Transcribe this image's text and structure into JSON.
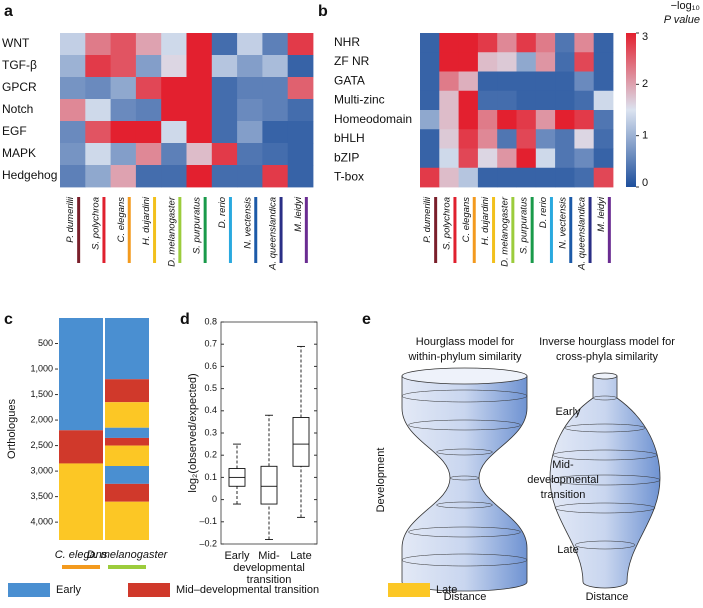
{
  "chart_data": [
    {
      "type": "heatmap",
      "label": "a",
      "rows": [
        "WNT",
        "TGF-β",
        "GPCR",
        "Notch",
        "EGF",
        "MAPK",
        "Hedgehog"
      ],
      "columns": [
        "P. dumerilii",
        "S. polychroa",
        "C. elegans",
        "H. dujardini",
        "D. melanogaster",
        "S. purpuratus",
        "D. rerio",
        "N. vectensis",
        "A. queenslandica",
        "M. leidyi"
      ],
      "column_colors": [
        "#7a1f2b",
        "#e0202e",
        "#f39a1e",
        "#f2c01c",
        "#9ccc3c",
        "#1a9a4a",
        "#29a9df",
        "#1c5aa8",
        "#2a2f86",
        "#6a2c91"
      ],
      "zlim": [
        0,
        3
      ],
      "colorscale": [
        "#1e4f9c",
        "#dbe3f0",
        "#e3202f"
      ],
      "values": [
        [
          1.3,
          2.3,
          2.6,
          2.0,
          1.4,
          3,
          0.3,
          1.3,
          0.5,
          2.8
        ],
        [
          1.0,
          2.8,
          2.6,
          0.8,
          1.6,
          3,
          1.2,
          0.8,
          1.1,
          0.2
        ],
        [
          0.7,
          0.6,
          0.9,
          2.7,
          3,
          3,
          0.3,
          0.5,
          0.5,
          2.5
        ],
        [
          2.2,
          1.4,
          0.6,
          0.5,
          3,
          3,
          0.3,
          0.6,
          0.5,
          0.3
        ],
        [
          0.6,
          2.6,
          3,
          3,
          1.4,
          3,
          0.3,
          0.8,
          0.2,
          0.2
        ],
        [
          0.7,
          1.4,
          0.8,
          2.2,
          0.5,
          1.8,
          2.8,
          0.4,
          0.3,
          0.2
        ],
        [
          0.5,
          0.9,
          2.0,
          0.3,
          0.3,
          3,
          0.3,
          0.3,
          2.8,
          0.2
        ]
      ]
    },
    {
      "type": "heatmap",
      "label": "b",
      "rows": [
        "NHR",
        "ZF NR",
        "GATA",
        "Multi-zinc",
        "Homeodomain",
        "bHLH",
        "bZIP",
        "T-box"
      ],
      "columns": [
        "P. dumerilii",
        "S. polychroa",
        "C. elegans",
        "H. dujardini",
        "D. melanogaster",
        "S. purpuratus",
        "D. rerio",
        "N. vectensis",
        "A. queenslandica",
        "M. leidyi"
      ],
      "column_colors": [
        "#7a1f2b",
        "#e0202e",
        "#f39a1e",
        "#f2c01c",
        "#9ccc3c",
        "#1a9a4a",
        "#29a9df",
        "#1c5aa8",
        "#2a2f86",
        "#6a2c91"
      ],
      "zlim": [
        0,
        3
      ],
      "colorscale": [
        "#1e4f9c",
        "#dbe3f0",
        "#e3202f"
      ],
      "colorbar": {
        "title": [
          "−log₁₀",
          "P value"
        ],
        "ticks": [
          0,
          1,
          2,
          3
        ]
      },
      "values": [
        [
          0.2,
          3,
          3,
          2.8,
          2.2,
          2.8,
          2.3,
          0.4,
          2.2,
          0.2
        ],
        [
          0.2,
          3,
          3,
          1.8,
          1.7,
          0.9,
          2.1,
          0.3,
          2.7,
          0.2
        ],
        [
          0.2,
          2.3,
          1.9,
          0.2,
          0.2,
          0.2,
          0.2,
          0.2,
          0.6,
          0.2
        ],
        [
          0.2,
          1.8,
          3,
          0.3,
          0.3,
          0.2,
          0.2,
          0.2,
          0.3,
          1.4
        ],
        [
          0.9,
          1.8,
          3,
          2.3,
          3,
          2.8,
          2.1,
          3,
          2.8,
          0.4
        ],
        [
          0.2,
          1.7,
          2.8,
          2.2,
          0.4,
          2.7,
          0.6,
          0.4,
          1.6,
          0.3
        ],
        [
          0.2,
          1.4,
          2.7,
          1.6,
          2.1,
          3,
          1.4,
          0.4,
          0.6,
          0.2
        ],
        [
          2.8,
          1.8,
          1.2,
          0.2,
          0.2,
          0.2,
          0.2,
          0.2,
          0.3,
          2.7
        ]
      ]
    },
    {
      "type": "stacked_column",
      "label": "c",
      "y_label": "Orthologues",
      "y_inverted": true,
      "ylim": [
        0,
        4350
      ],
      "yticks": [
        500,
        {
          "value": 1000,
          "label": "1,000"
        },
        {
          "value": 1500,
          "label": "1,500"
        },
        {
          "value": 2000,
          "label": "2,000"
        },
        {
          "value": 2500,
          "label": "2,500"
        },
        {
          "value": 3000,
          "label": "3,000"
        },
        {
          "value": 3500,
          "label": "3,500"
        },
        {
          "value": 4000,
          "label": "4,000"
        }
      ],
      "legend": [
        {
          "name": "Early",
          "color": "#4a8fd1"
        },
        {
          "name": "Mid–developmental transition",
          "color": "#d0392b"
        },
        {
          "name": "Late",
          "color": "#fcc725"
        }
      ],
      "columns": [
        {
          "name": "C. elegans",
          "color": "#f39a1e",
          "segments": [
            {
              "stage": 0,
              "size": 2200
            },
            {
              "stage": 1,
              "size": 650
            },
            {
              "stage": 2,
              "size": 1500
            }
          ]
        },
        {
          "name": "D. melanogaster",
          "color": "#9ccc3c",
          "segments": [
            {
              "stage": 0,
              "size": 1200
            },
            {
              "stage": 1,
              "size": 450
            },
            {
              "stage": 2,
              "size": 500
            },
            {
              "stage": 0,
              "size": 200
            },
            {
              "stage": 1,
              "size": 150
            },
            {
              "stage": 2,
              "size": 400
            },
            {
              "stage": 0,
              "size": 350
            },
            {
              "stage": 1,
              "size": 350
            },
            {
              "stage": 2,
              "size": 750
            }
          ]
        }
      ]
    },
    {
      "type": "box",
      "label": "d",
      "y_label": "log₂(observed/expected)",
      "ylim": [
        -0.2,
        0.8
      ],
      "yticks": [
        {
          "value": -0.2,
          "label": "–0.2"
        },
        {
          "value": -0.1,
          "label": "–0.1"
        },
        0,
        0.1,
        0.2,
        0.3,
        0.4,
        0.5,
        0.6,
        0.7,
        0.8
      ],
      "categories": [
        [
          "Early"
        ],
        [
          "Mid-",
          "developmental",
          "transition"
        ],
        [
          "Late"
        ]
      ],
      "boxes": [
        {
          "min": -0.02,
          "q1": 0.06,
          "median": 0.1,
          "q3": 0.14,
          "max": 0.25
        },
        {
          "min": -0.18,
          "q1": -0.02,
          "median": 0.06,
          "q3": 0.15,
          "max": 0.38
        },
        {
          "min": -0.08,
          "q1": 0.15,
          "median": 0.25,
          "q3": 0.37,
          "max": 0.69
        }
      ]
    }
  ],
  "diagram": {
    "label": "e",
    "left_title": [
      "Hourglass model for",
      "within-phylum similarity"
    ],
    "right_title": [
      "Inverse hourglass model for",
      "cross-phyla similarity"
    ],
    "stages": [
      [
        "Early"
      ],
      [
        "Mid-",
        "developmental",
        "transition"
      ],
      [
        "Late"
      ]
    ],
    "y_label": "Development",
    "x_labels": [
      "Distance",
      "Distance"
    ]
  }
}
